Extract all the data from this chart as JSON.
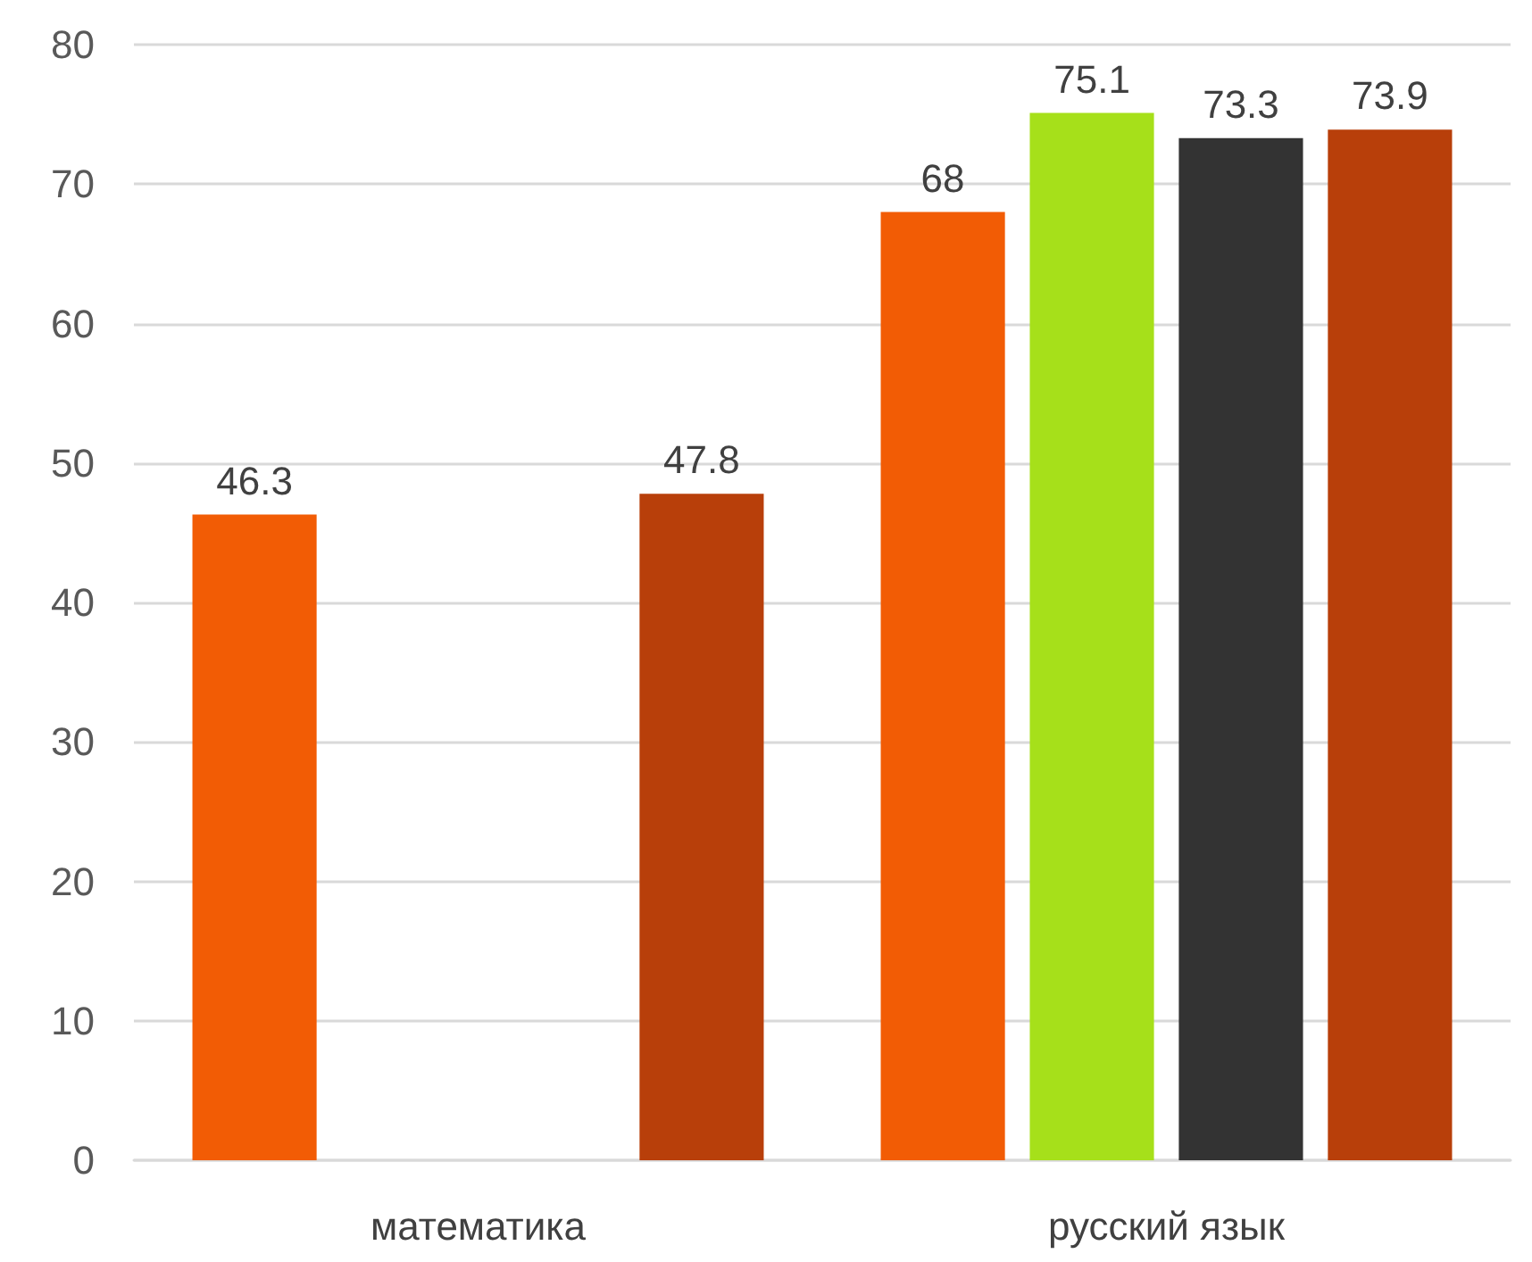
{
  "chart_data": {
    "type": "bar",
    "categories": [
      "математика",
      "русский язык"
    ],
    "series": [
      {
        "color": "#f25c05",
        "values": [
          46.3,
          68
        ]
      },
      {
        "color": "#a6e01a",
        "values": [
          null,
          75.1
        ]
      },
      {
        "color": "#333333",
        "values": [
          null,
          73.3
        ]
      },
      {
        "color": "#b83f0a",
        "values": [
          47.8,
          73.9
        ]
      }
    ],
    "ylim": [
      0,
      80
    ],
    "yticks": [
      0,
      10,
      20,
      30,
      40,
      50,
      60,
      70,
      80
    ],
    "grid": "y",
    "data_labels": true
  }
}
